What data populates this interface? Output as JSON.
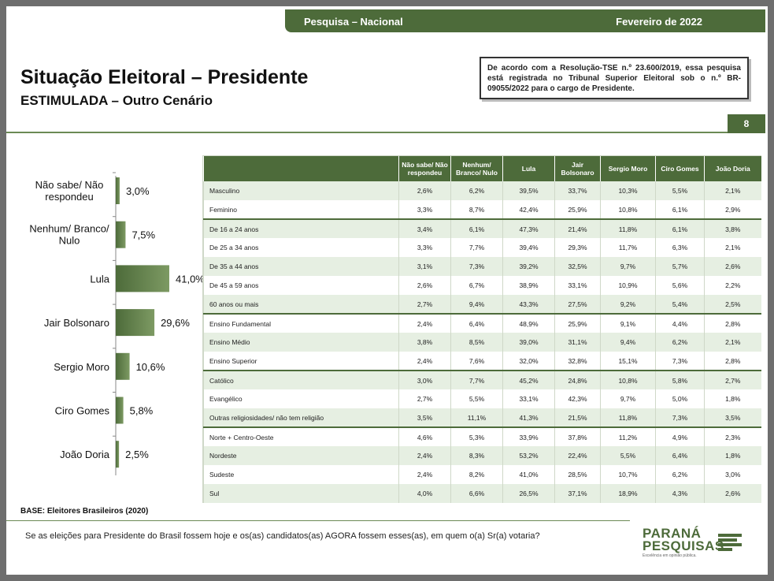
{
  "header": {
    "left": "Pesquisa – Nacional",
    "right": "Fevereiro de 2022"
  },
  "title": "Situação Eleitoral – Presidente",
  "subtitle": "ESTIMULADA – Outro Cenário",
  "tse_note": "De acordo com a Resolução-TSE n.º 23.600/2019, essa pesquisa está registrada no Tribunal Superior Eleitoral sob o n.º BR-09055/2022 para o cargo de Presidente.",
  "page_number": "8",
  "chart_data": {
    "type": "bar",
    "orientation": "horizontal",
    "categories": [
      [
        "Não sabe/ Não",
        "respondeu"
      ],
      [
        "Nenhum/ Branco/",
        "Nulo"
      ],
      [
        "Lula"
      ],
      [
        "Jair Bolsonaro"
      ],
      [
        "Sergio Moro"
      ],
      [
        "Ciro Gomes"
      ],
      [
        "João Doria"
      ]
    ],
    "values": [
      3.0,
      7.5,
      41.0,
      29.6,
      10.6,
      5.8,
      2.5
    ],
    "value_labels": [
      "3,0%",
      "7,5%",
      "41,0%",
      "29,6%",
      "10,6%",
      "5,8%",
      "2,5%"
    ],
    "xlim": [
      0,
      41.0
    ],
    "bar_color": "#4d6b3a",
    "bar_color_light": "#7d9a63"
  },
  "table": {
    "headers": [
      "",
      "Não sabe/ Não respondeu",
      "Nenhum/ Branco/ Nulo",
      "Lula",
      "Jair Bolsonaro",
      "Sergio Moro",
      "Ciro Gomes",
      "João Doria"
    ],
    "groups": [
      [
        [
          "Masculino",
          "2,6%",
          "6,2%",
          "39,5%",
          "33,7%",
          "10,3%",
          "5,5%",
          "2,1%"
        ],
        [
          "Feminino",
          "3,3%",
          "8,7%",
          "42,4%",
          "25,9%",
          "10,8%",
          "6,1%",
          "2,9%"
        ]
      ],
      [
        [
          "De 16 a 24 anos",
          "3,4%",
          "6,1%",
          "47,3%",
          "21,4%",
          "11,8%",
          "6,1%",
          "3,8%"
        ],
        [
          "De 25 a 34 anos",
          "3,3%",
          "7,7%",
          "39,4%",
          "29,3%",
          "11,7%",
          "6,3%",
          "2,1%"
        ],
        [
          "De 35 a 44 anos",
          "3,1%",
          "7,3%",
          "39,2%",
          "32,5%",
          "9,7%",
          "5,7%",
          "2,6%"
        ],
        [
          "De 45 a 59 anos",
          "2,6%",
          "6,7%",
          "38,9%",
          "33,1%",
          "10,9%",
          "5,6%",
          "2,2%"
        ],
        [
          "60 anos ou mais",
          "2,7%",
          "9,4%",
          "43,3%",
          "27,5%",
          "9,2%",
          "5,4%",
          "2,5%"
        ]
      ],
      [
        [
          "Ensino Fundamental",
          "2,4%",
          "6,4%",
          "48,9%",
          "25,9%",
          "9,1%",
          "4,4%",
          "2,8%"
        ],
        [
          "Ensino Médio",
          "3,8%",
          "8,5%",
          "39,0%",
          "31,1%",
          "9,4%",
          "6,2%",
          "2,1%"
        ],
        [
          "Ensino Superior",
          "2,4%",
          "7,6%",
          "32,0%",
          "32,8%",
          "15,1%",
          "7,3%",
          "2,8%"
        ]
      ],
      [
        [
          "Católico",
          "3,0%",
          "7,7%",
          "45,2%",
          "24,8%",
          "10,8%",
          "5,8%",
          "2,7%"
        ],
        [
          "Evangélico",
          "2,7%",
          "5,5%",
          "33,1%",
          "42,3%",
          "9,7%",
          "5,0%",
          "1,8%"
        ],
        [
          "Outras religiosidades/ não tem religião",
          "3,5%",
          "11,1%",
          "41,3%",
          "21,5%",
          "11,8%",
          "7,3%",
          "3,5%"
        ]
      ],
      [
        [
          "Norte + Centro-Oeste",
          "4,6%",
          "5,3%",
          "33,9%",
          "37,8%",
          "11,2%",
          "4,9%",
          "2,3%"
        ],
        [
          "Nordeste",
          "2,4%",
          "8,3%",
          "53,2%",
          "22,4%",
          "5,5%",
          "6,4%",
          "1,8%"
        ],
        [
          "Sudeste",
          "2,4%",
          "8,2%",
          "41,0%",
          "28,5%",
          "10,7%",
          "6,2%",
          "3,0%"
        ],
        [
          "Sul",
          "4,0%",
          "6,6%",
          "26,5%",
          "37,1%",
          "18,9%",
          "4,3%",
          "2,6%"
        ]
      ]
    ]
  },
  "base": "BASE: Eleitores Brasileiros (2020)",
  "question": "Se as eleições para Presidente do Brasil fossem hoje e os(as) candidatos(as) AGORA fossem esses(as), em quem o(a) Sr(a) votaria?",
  "logo": {
    "line1": "PARANÁ",
    "line2": "PESQUISAS",
    "tagline": "Excelência em opinião pública."
  },
  "colors": {
    "brand_green": "#4d6b3a",
    "row_stripe": "#e6efe2"
  }
}
